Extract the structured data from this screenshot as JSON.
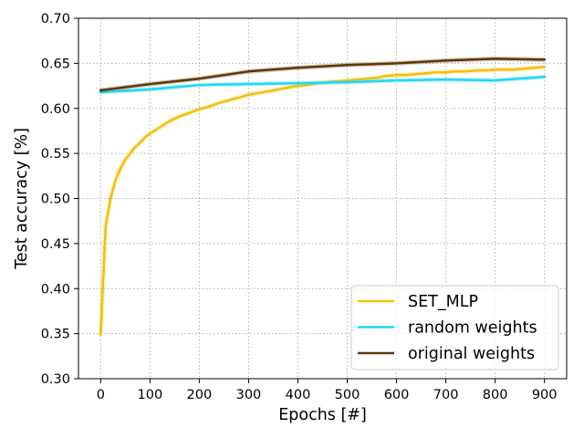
{
  "chart_data": {
    "type": "line",
    "title": "",
    "xlabel": "Epochs [#]",
    "ylabel": "Test accuracy [%]",
    "xlim": [
      -45,
      945
    ],
    "ylim": [
      0.3,
      0.7
    ],
    "xticks": [
      "0",
      "100",
      "200",
      "300",
      "400",
      "500",
      "600",
      "700",
      "800",
      "900"
    ],
    "yticks": [
      "0.30",
      "0.35",
      "0.40",
      "0.45",
      "0.50",
      "0.55",
      "0.60",
      "0.65",
      "0.70"
    ],
    "grid": true,
    "legend_position": "lower-right",
    "series": [
      {
        "name": "SET_MLP",
        "color": "#f2c109",
        "x": [
          0,
          10,
          20,
          30,
          40,
          50,
          60,
          70,
          80,
          90,
          100,
          120,
          140,
          160,
          180,
          200,
          220,
          240,
          260,
          280,
          300,
          320,
          340,
          360,
          380,
          400,
          420,
          440,
          460,
          480,
          500,
          520,
          540,
          560,
          580,
          600,
          620,
          640,
          660,
          680,
          700,
          720,
          740,
          760,
          780,
          800,
          820,
          840,
          860,
          880,
          900
        ],
        "y": [
          0.349,
          0.468,
          0.5,
          0.52,
          0.533,
          0.543,
          0.55,
          0.557,
          0.562,
          0.568,
          0.572,
          0.579,
          0.586,
          0.591,
          0.595,
          0.599,
          0.602,
          0.606,
          0.609,
          0.612,
          0.615,
          0.617,
          0.619,
          0.621,
          0.623,
          0.625,
          0.626,
          0.628,
          0.629,
          0.63,
          0.631,
          0.632,
          0.633,
          0.634,
          0.636,
          0.637,
          0.637,
          0.638,
          0.639,
          0.64,
          0.64,
          0.641,
          0.641,
          0.642,
          0.642,
          0.643,
          0.643,
          0.643,
          0.644,
          0.645,
          0.646
        ]
      },
      {
        "name": "random weights",
        "color": "#21d6f6",
        "x": [
          0,
          100,
          200,
          300,
          400,
          500,
          600,
          700,
          800,
          900
        ],
        "y": [
          0.618,
          0.621,
          0.626,
          0.627,
          0.628,
          0.629,
          0.631,
          0.632,
          0.631,
          0.635
        ]
      },
      {
        "name": "original weights",
        "color": "#5d3707",
        "x": [
          0,
          100,
          200,
          300,
          400,
          500,
          600,
          700,
          800,
          900
        ],
        "y": [
          0.62,
          0.627,
          0.633,
          0.641,
          0.645,
          0.648,
          0.65,
          0.653,
          0.655,
          0.654
        ]
      }
    ]
  }
}
